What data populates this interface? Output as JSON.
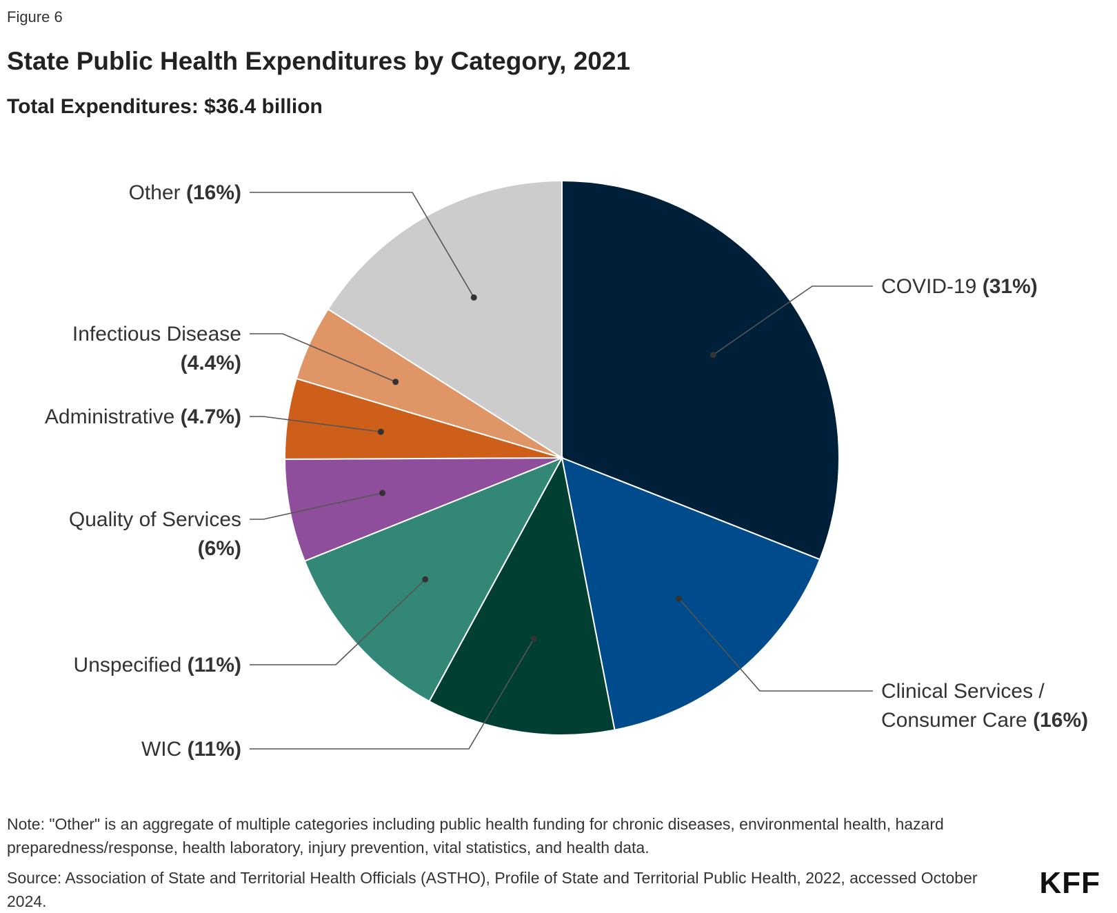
{
  "figure_label": "Figure 6",
  "title": "State Public Health Expenditures by Category, 2021",
  "subtitle": "Total Expenditures: $36.4 billion",
  "note": "Note: \"Other\" is an aggregate of multiple categories including public health funding for chronic diseases, environmental health, hazard preparedness/response, health laboratory, injury prevention, vital statistics, and health data.",
  "source": "Source: Association of State and Territorial Health Officials (ASTHO), Profile of State and Territorial Public Health, 2022, accessed October 2024.",
  "logo": "KFF",
  "chart_data": {
    "type": "pie",
    "title": "State Public Health Expenditures by Category, 2021",
    "subtitle": "Total Expenditures: $36.4 billion",
    "slices": [
      {
        "name": "COVID-19",
        "display": "31%",
        "value": 31,
        "color": "#001f38",
        "label_lines": [
          "COVID-19"
        ],
        "side": "right"
      },
      {
        "name": "Clinical Services / Consumer Care",
        "display": "16%",
        "value": 16,
        "color": "#004b8b",
        "label_lines": [
          "Clinical Services /",
          "Consumer Care"
        ],
        "side": "right"
      },
      {
        "name": "WIC",
        "display": "11%",
        "value": 11,
        "color": "#003f32",
        "label_lines": [
          "WIC"
        ],
        "side": "left"
      },
      {
        "name": "Unspecified",
        "display": "11%",
        "value": 11,
        "color": "#338777",
        "label_lines": [
          "Unspecified"
        ],
        "side": "left"
      },
      {
        "name": "Quality of Services",
        "display": "6%",
        "value": 6,
        "color": "#8e4e9c",
        "label_lines": [
          "Quality of Services",
          ""
        ],
        "side": "left"
      },
      {
        "name": "Administrative",
        "display": "4.7%",
        "value": 4.7,
        "color": "#ce5f1b",
        "label_lines": [
          "Administrative"
        ],
        "side": "left"
      },
      {
        "name": "Infectious Disease",
        "display": "4.4%",
        "value": 4.4,
        "color": "#e09566",
        "label_lines": [
          "Infectious Disease",
          ""
        ],
        "side": "left"
      },
      {
        "name": "Other",
        "display": "16%",
        "value": 16,
        "color": "#cccccc",
        "label_lines": [
          "Other"
        ],
        "side": "left"
      }
    ]
  }
}
